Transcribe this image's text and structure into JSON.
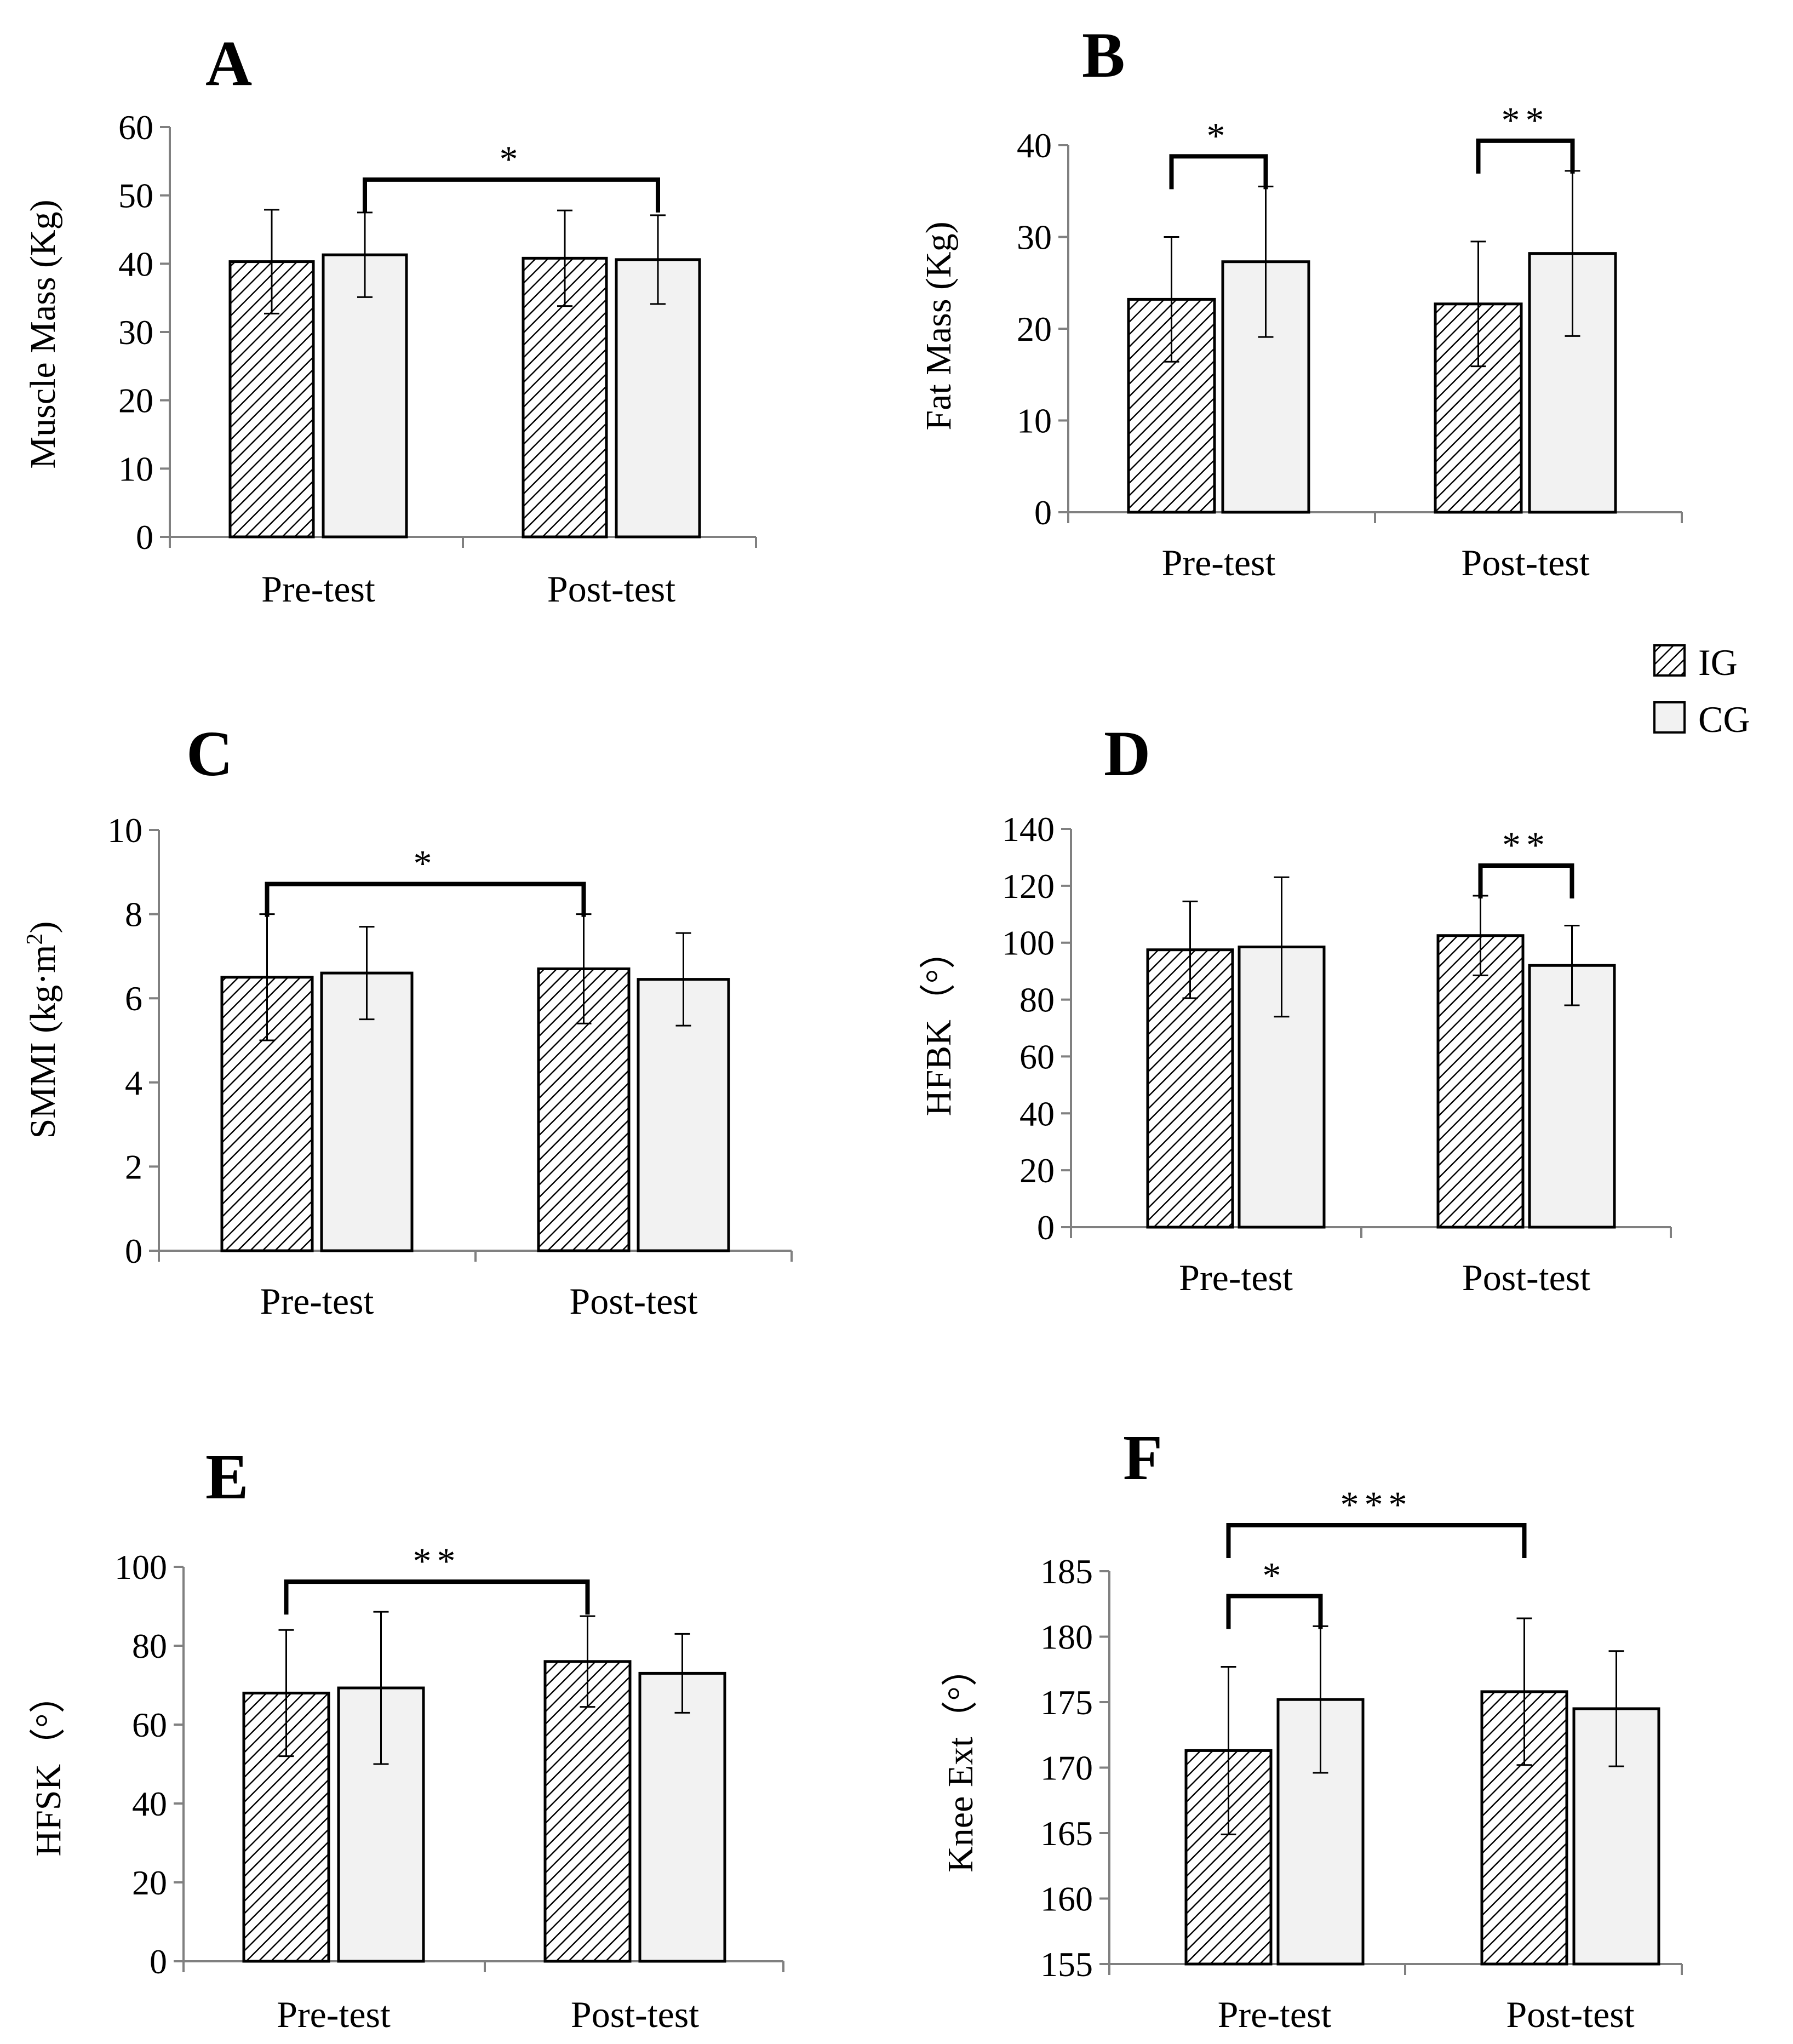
{
  "legend": {
    "entries": [
      {
        "key": "IG",
        "label": "IG",
        "pattern": "hatch"
      },
      {
        "key": "CG",
        "label": "CG",
        "pattern": "solid"
      }
    ]
  },
  "colors": {
    "cg_fill": "#f2f2f2",
    "ig_fill": "#ffffff",
    "hatch": "#000000",
    "axis": "#808080",
    "bar_stroke": "#000000"
  },
  "chart_data": [
    {
      "panel": "A",
      "type": "bar",
      "ylabel": "Muscle Mass  (Kg)",
      "categories": [
        "Pre-test",
        "Post-test"
      ],
      "ylim": [
        0,
        60
      ],
      "yticks": [
        "0",
        "10",
        "20",
        "30",
        "40",
        "50",
        "60"
      ],
      "series": [
        {
          "name": "IG",
          "values": [
            40.3,
            40.8
          ],
          "errors": [
            7.6,
            7.0
          ]
        },
        {
          "name": "CG",
          "values": [
            41.3,
            40.6
          ],
          "errors": [
            6.2,
            6.5
          ]
        }
      ],
      "significance": [
        {
          "label": "*",
          "from": [
            0,
            1
          ],
          "to": [
            1,
            1
          ]
        }
      ]
    },
    {
      "panel": "B",
      "type": "bar",
      "ylabel": "Fat Mass (Kg)",
      "categories": [
        "Pre-test",
        "Post-test"
      ],
      "ylim": [
        0,
        40
      ],
      "yticks": [
        "0",
        "10",
        "20",
        "30",
        "40"
      ],
      "series": [
        {
          "name": "IG",
          "values": [
            23.2,
            22.7
          ],
          "errors": [
            6.8,
            6.8
          ]
        },
        {
          "name": "CG",
          "values": [
            27.3,
            28.2
          ],
          "errors": [
            8.2,
            9.0
          ]
        }
      ],
      "significance": [
        {
          "label": "*",
          "from": [
            0,
            0
          ],
          "to": [
            0,
            1
          ]
        },
        {
          "label": "**",
          "from": [
            1,
            0
          ],
          "to": [
            1,
            1
          ]
        }
      ]
    },
    {
      "panel": "C",
      "type": "bar",
      "ylabel": "SMMI  (kg·m",
      "ylabel_sup": "2",
      "ylabel_end": ")",
      "categories": [
        "Pre-test",
        "Post-test"
      ],
      "ylim": [
        0,
        10
      ],
      "yticks": [
        "0",
        "2",
        "4",
        "6",
        "8",
        "10"
      ],
      "series": [
        {
          "name": "IG",
          "values": [
            6.5,
            6.7
          ],
          "errors": [
            1.5,
            1.3
          ]
        },
        {
          "name": "CG",
          "values": [
            6.6,
            6.45
          ],
          "errors": [
            1.1,
            1.1
          ]
        }
      ],
      "significance": [
        {
          "label": "*",
          "from": [
            0,
            0
          ],
          "to": [
            1,
            0
          ]
        }
      ]
    },
    {
      "panel": "D",
      "type": "bar",
      "ylabel": "HFBK（°）",
      "categories": [
        "Pre-test",
        "Post-test"
      ],
      "ylim": [
        0,
        140
      ],
      "yticks": [
        "0",
        "20",
        "40",
        "60",
        "80",
        "100",
        "120",
        "140"
      ],
      "series": [
        {
          "name": "IG",
          "values": [
            97.5,
            102.5
          ],
          "errors": [
            17.0,
            14.0
          ]
        },
        {
          "name": "CG",
          "values": [
            98.5,
            92.0
          ],
          "errors": [
            24.5,
            14.0
          ]
        }
      ],
      "significance": [
        {
          "label": "**",
          "from": [
            1,
            0
          ],
          "to": [
            1,
            1
          ]
        }
      ]
    },
    {
      "panel": "E",
      "type": "bar",
      "ylabel": "HFSK（°）",
      "categories": [
        "Pre-test",
        "Post-test"
      ],
      "ylim": [
        0,
        100
      ],
      "yticks": [
        "0",
        "20",
        "40",
        "60",
        "80",
        "100"
      ],
      "series": [
        {
          "name": "IG",
          "values": [
            68.0,
            76.0
          ],
          "errors": [
            16.0,
            11.5
          ]
        },
        {
          "name": "CG",
          "values": [
            69.3,
            73.0
          ],
          "errors": [
            19.3,
            10.0
          ]
        }
      ],
      "significance": [
        {
          "label": "**",
          "from": [
            0,
            0
          ],
          "to": [
            1,
            0
          ]
        }
      ]
    },
    {
      "panel": "F",
      "type": "bar",
      "ylabel": "Knee Ext（°）",
      "categories": [
        "Pre-test",
        "Post-test"
      ],
      "ylim": [
        155,
        185
      ],
      "yticks": [
        "155",
        "160",
        "165",
        "170",
        "175",
        "180",
        "185"
      ],
      "series": [
        {
          "name": "IG",
          "values": [
            171.3,
            175.8
          ],
          "errors": [
            6.4,
            5.6
          ]
        },
        {
          "name": "CG",
          "values": [
            175.2,
            174.5
          ],
          "errors": [
            5.6,
            4.4
          ]
        }
      ],
      "significance": [
        {
          "label": "*",
          "from": [
            0,
            0
          ],
          "to": [
            0,
            1
          ]
        },
        {
          "label": "***",
          "from": [
            0,
            0
          ],
          "to": [
            1,
            0
          ]
        }
      ]
    }
  ]
}
